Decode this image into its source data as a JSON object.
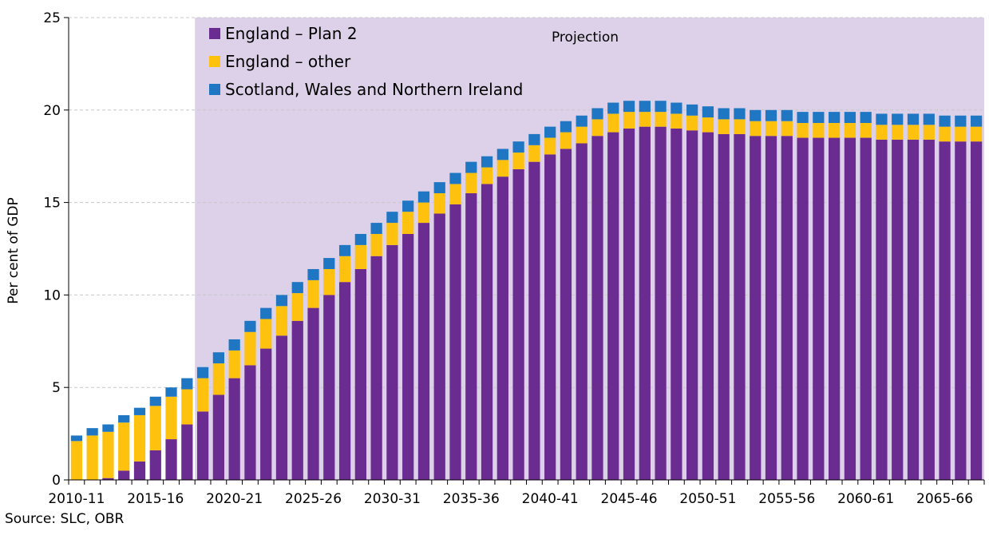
{
  "chart_data": {
    "type": "bar",
    "stacked": true,
    "ylabel": "Per cent of GDP",
    "ylim": [
      0,
      25
    ],
    "yticks": [
      0,
      5,
      10,
      15,
      20,
      25
    ],
    "grid": "horizontal dashed",
    "legend_position": "top-left",
    "projection_label": "Projection",
    "projection_start": "2018-19",
    "x_tick_labels": [
      "2010-11",
      "2015-16",
      "2020-21",
      "2025-26",
      "2030-31",
      "2035-36",
      "2040-41",
      "2045-46",
      "2050-51",
      "2055-56",
      "2060-61",
      "2065-66"
    ],
    "categories": [
      "2010-11",
      "2011-12",
      "2012-13",
      "2013-14",
      "2014-15",
      "2015-16",
      "2016-17",
      "2017-18",
      "2018-19",
      "2019-20",
      "2020-21",
      "2021-22",
      "2022-23",
      "2023-24",
      "2024-25",
      "2025-26",
      "2026-27",
      "2027-28",
      "2028-29",
      "2029-30",
      "2030-31",
      "2031-32",
      "2032-33",
      "2033-34",
      "2034-35",
      "2035-36",
      "2036-37",
      "2037-38",
      "2038-39",
      "2039-40",
      "2040-41",
      "2041-42",
      "2042-43",
      "2043-44",
      "2044-45",
      "2045-46",
      "2046-47",
      "2047-48",
      "2048-49",
      "2049-50",
      "2050-51",
      "2051-52",
      "2052-53",
      "2053-54",
      "2054-55",
      "2055-56",
      "2056-57",
      "2057-58",
      "2058-59",
      "2059-60",
      "2060-61",
      "2061-62",
      "2062-63",
      "2063-64",
      "2064-65",
      "2065-66",
      "2066-67",
      "2067-68"
    ],
    "series": [
      {
        "name": "England – Plan 2",
        "color": "#6b2c91",
        "values": [
          0.0,
          0.0,
          0.1,
          0.5,
          1.0,
          1.6,
          2.2,
          3.0,
          3.7,
          4.6,
          5.5,
          6.2,
          7.1,
          7.8,
          8.6,
          9.3,
          10.0,
          10.7,
          11.4,
          12.1,
          12.7,
          13.3,
          13.9,
          14.4,
          14.9,
          15.5,
          16.0,
          16.4,
          16.8,
          17.2,
          17.6,
          17.9,
          18.2,
          18.6,
          18.8,
          19.0,
          19.1,
          19.1,
          19.0,
          18.9,
          18.8,
          18.7,
          18.7,
          18.6,
          18.6,
          18.6,
          18.5,
          18.5,
          18.5,
          18.5,
          18.5,
          18.4,
          18.4,
          18.4,
          18.4,
          18.3,
          18.3,
          18.3
        ]
      },
      {
        "name": "England – other",
        "color": "#fec20e",
        "values": [
          2.1,
          2.4,
          2.5,
          2.6,
          2.5,
          2.4,
          2.3,
          1.9,
          1.8,
          1.7,
          1.5,
          1.8,
          1.6,
          1.6,
          1.5,
          1.5,
          1.4,
          1.4,
          1.3,
          1.2,
          1.2,
          1.2,
          1.1,
          1.1,
          1.1,
          1.1,
          0.9,
          0.9,
          0.9,
          0.9,
          0.9,
          0.9,
          0.9,
          0.9,
          1.0,
          0.9,
          0.8,
          0.8,
          0.8,
          0.8,
          0.8,
          0.8,
          0.8,
          0.8,
          0.8,
          0.8,
          0.8,
          0.8,
          0.8,
          0.8,
          0.8,
          0.8,
          0.8,
          0.8,
          0.8,
          0.8,
          0.8,
          0.8
        ]
      },
      {
        "name": "Scotland, Wales and Northern Ireland",
        "color": "#1f77c4",
        "values": [
          0.3,
          0.4,
          0.4,
          0.4,
          0.4,
          0.5,
          0.5,
          0.6,
          0.6,
          0.6,
          0.6,
          0.6,
          0.6,
          0.6,
          0.6,
          0.6,
          0.6,
          0.6,
          0.6,
          0.6,
          0.6,
          0.6,
          0.6,
          0.6,
          0.6,
          0.6,
          0.6,
          0.6,
          0.6,
          0.6,
          0.6,
          0.6,
          0.6,
          0.6,
          0.6,
          0.6,
          0.6,
          0.6,
          0.6,
          0.6,
          0.6,
          0.6,
          0.6,
          0.6,
          0.6,
          0.6,
          0.6,
          0.6,
          0.6,
          0.6,
          0.6,
          0.6,
          0.6,
          0.6,
          0.6,
          0.6,
          0.6,
          0.6
        ]
      }
    ],
    "projection_shade": "#dcd1e8"
  },
  "source_text": "Source: SLC, OBR"
}
